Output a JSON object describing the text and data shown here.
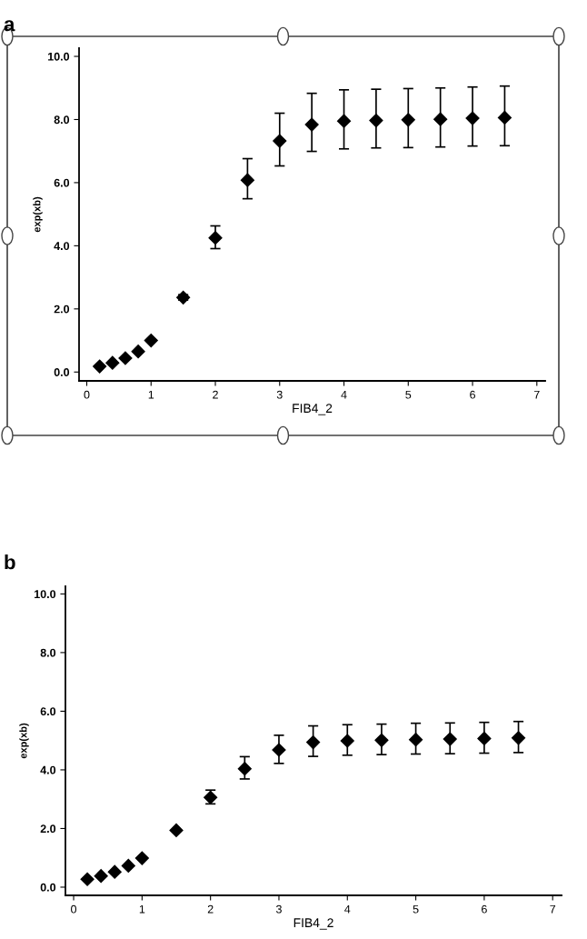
{
  "chart_data": [
    {
      "type": "scatter",
      "title": "a",
      "xlabel": "FIB4_2",
      "ylabel": "exp(xb)",
      "marker": "diamond",
      "grid": false,
      "legend": false,
      "xlim": [
        -0.12,
        7.13
      ],
      "xticks": [
        0,
        1,
        2,
        3,
        4,
        5,
        6,
        7
      ],
      "ylim": [
        -0.28,
        10.26
      ],
      "yticks": [
        {
          "value": 0,
          "label": "0.0"
        },
        {
          "value": 2,
          "label": "2.0"
        },
        {
          "value": 4,
          "label": "4.0"
        },
        {
          "value": 6,
          "label": "6.0"
        },
        {
          "value": 8,
          "label": "8.0"
        },
        {
          "value": 10,
          "label": "10.0"
        }
      ],
      "series": [
        {
          "color": "#000000",
          "x": [
            0.2,
            0.4,
            0.6,
            0.8,
            1,
            1.5,
            2,
            2.5,
            3,
            3.5,
            4,
            4.5,
            5,
            5.5,
            6,
            6.5
          ],
          "values": [
            0.18,
            0.29,
            0.44,
            0.65,
            1.0,
            2.36,
            4.25,
            6.08,
            7.32,
            7.84,
            7.95,
            7.97,
            7.99,
            8.01,
            8.04,
            8.06
          ],
          "errors": [
            null,
            null,
            null,
            null,
            null,
            [
              2.28,
              2.45
            ],
            [
              3.91,
              4.63
            ],
            [
              5.49,
              6.76
            ],
            [
              6.53,
              8.2
            ],
            [
              6.99,
              8.83
            ],
            [
              7.07,
              8.94
            ],
            [
              7.1,
              8.96
            ],
            [
              7.11,
              8.98
            ],
            [
              7.13,
              9.0
            ],
            [
              7.16,
              9.03
            ],
            [
              7.17,
              9.06
            ]
          ]
        }
      ]
    },
    {
      "type": "scatter",
      "title": "b",
      "xlabel": "FIB4_2",
      "ylabel": "exp(xb)",
      "marker": "diamond",
      "grid": false,
      "legend": false,
      "xlim": [
        -0.12,
        7.13
      ],
      "xticks": [
        0,
        1,
        2,
        3,
        4,
        5,
        6,
        7
      ],
      "ylim": [
        -0.28,
        10.26
      ],
      "yticks": [
        {
          "value": 0,
          "label": "0.0"
        },
        {
          "value": 2,
          "label": "2.0"
        },
        {
          "value": 4,
          "label": "4.0"
        },
        {
          "value": 6,
          "label": "6.0"
        },
        {
          "value": 8,
          "label": "8.0"
        },
        {
          "value": 10,
          "label": "10.0"
        }
      ],
      "series": [
        {
          "color": "#000000",
          "x": [
            0.2,
            0.4,
            0.6,
            0.8,
            1,
            1.5,
            2,
            2.5,
            3,
            3.5,
            4,
            4.5,
            5,
            5.5,
            6,
            6.5
          ],
          "values": [
            0.27,
            0.38,
            0.52,
            0.73,
            0.99,
            1.94,
            3.06,
            4.04,
            4.68,
            4.94,
            4.99,
            5.01,
            5.03,
            5.05,
            5.07,
            5.09
          ],
          "errors": [
            null,
            null,
            null,
            null,
            null,
            null,
            [
              2.84,
              3.31
            ],
            [
              3.69,
              4.45
            ],
            [
              4.22,
              5.18
            ],
            [
              4.46,
              5.5
            ],
            [
              4.5,
              5.54
            ],
            [
              4.52,
              5.56
            ],
            [
              4.54,
              5.59
            ],
            [
              4.55,
              5.6
            ],
            [
              4.57,
              5.62
            ],
            [
              4.59,
              5.65
            ]
          ]
        }
      ]
    }
  ]
}
